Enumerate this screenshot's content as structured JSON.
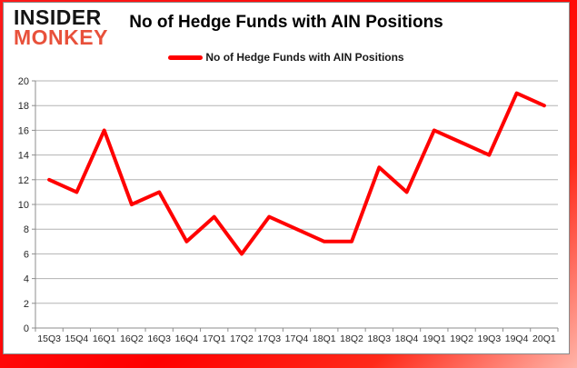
{
  "logo": {
    "line1": "INSIDER",
    "line2": "MONKEY"
  },
  "legend": {
    "label": "No of Hedge Funds with AIN Positions"
  },
  "chart_data": {
    "type": "line",
    "title": "No of Hedge Funds with AIN Positions",
    "categories": [
      "15Q3",
      "15Q4",
      "16Q1",
      "16Q2",
      "16Q3",
      "16Q4",
      "17Q1",
      "17Q2",
      "17Q3",
      "17Q4",
      "18Q1",
      "18Q2",
      "18Q3",
      "18Q4",
      "19Q1",
      "19Q2",
      "19Q3",
      "19Q4",
      "20Q1"
    ],
    "series": [
      {
        "name": "No of Hedge Funds with AIN Positions",
        "values": [
          12,
          11,
          16,
          10,
          11,
          7,
          9,
          6,
          9,
          8,
          7,
          7,
          13,
          11,
          16,
          15,
          14,
          19,
          18
        ]
      }
    ],
    "xlabel": "",
    "ylabel": "",
    "ylim": [
      0,
      20
    ],
    "ytick_step": 2,
    "grid": true,
    "legend_position": "top-center",
    "colors": {
      "line": "#ff0000",
      "grid": "#b3b3b3",
      "axis": "#8c8c8c",
      "tick_label": "#262626",
      "title": "#000000",
      "logo_black": "#141414",
      "logo_red": "#e8513b",
      "frame": "#ff0000"
    }
  }
}
